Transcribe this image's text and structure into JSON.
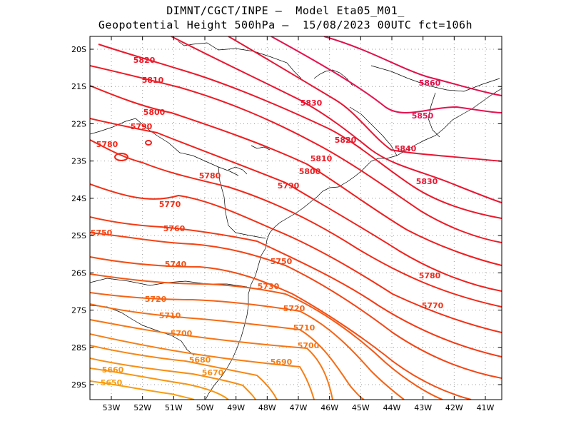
{
  "title_line1": "DIMNT/CGCT/INPE –  Model Eta05_M01_",
  "title_line2": "Geopotential Height 500hPa –  15/08/2023 00UTC fct=106h",
  "lat_labels": [
    "20S",
    "21S",
    "22S",
    "23S",
    "24S",
    "25S",
    "26S",
    "27S",
    "28S",
    "29S"
  ],
  "lon_labels": [
    "53W",
    "52W",
    "51W",
    "50W",
    "49W",
    "48W",
    "47W",
    "46W",
    "45W",
    "44W",
    "43W",
    "42W",
    "41W"
  ],
  "contours": [
    {
      "value": 5860,
      "label": "5860",
      "color": "#e0104a"
    },
    {
      "value": 5850,
      "label": "5850",
      "color": "#e6124f"
    },
    {
      "value": 5840,
      "label": "5840",
      "color": "#e81432"
    },
    {
      "value": 5830,
      "label": "5830",
      "color": "#ea1530"
    },
    {
      "value": 5820,
      "label": "5820",
      "color": "#ec182a"
    },
    {
      "value": 5810,
      "label": "5810",
      "color": "#ee1a24"
    },
    {
      "value": 5800,
      "label": "5800",
      "color": "#f01d1f"
    },
    {
      "value": 5790,
      "label": "5790",
      "color": "#f0201c"
    },
    {
      "value": 5780,
      "label": "5780",
      "color": "#f22818"
    },
    {
      "value": 5770,
      "label": "5770",
      "color": "#f23015"
    },
    {
      "value": 5760,
      "label": "5760",
      "color": "#f33a14"
    },
    {
      "value": 5750,
      "label": "5750",
      "color": "#f44414"
    },
    {
      "value": 5740,
      "label": "5740",
      "color": "#f44e14"
    },
    {
      "value": 5730,
      "label": "5730",
      "color": "#f55814"
    },
    {
      "value": 5720,
      "label": "5720",
      "color": "#f66214"
    },
    {
      "value": 5710,
      "label": "5710",
      "color": "#f66c14"
    },
    {
      "value": 5700,
      "label": "5700",
      "color": "#f77614"
    },
    {
      "value": 5690,
      "label": "5690",
      "color": "#f77e14"
    },
    {
      "value": 5680,
      "label": "5680",
      "color": "#f78614"
    },
    {
      "value": 5670,
      "label": "5670",
      "color": "#f78e14"
    },
    {
      "value": 5660,
      "label": "5660",
      "color": "#f79614"
    },
    {
      "value": 5650,
      "label": "5650",
      "color": "#f79e14"
    }
  ]
}
